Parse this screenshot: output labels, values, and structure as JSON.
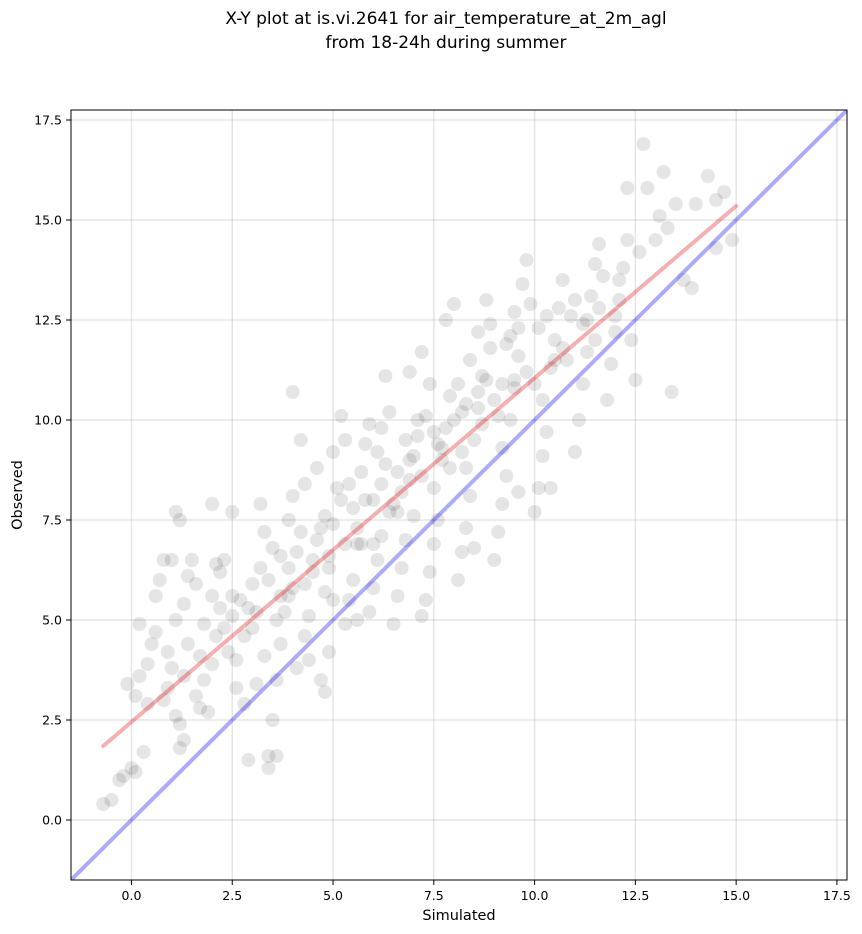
{
  "chart_data": {
    "type": "scatter",
    "title_lines": [
      "X-Y plot at is.vi.2641 for air_temperature_at_2m_agl",
      "from 18-24h during summer"
    ],
    "xlabel": "Simulated",
    "ylabel": "Observed",
    "xlim": [
      -1.5,
      17.75
    ],
    "ylim": [
      -1.5,
      17.75
    ],
    "xticks": [
      {
        "value": 0.0,
        "label": "0.0"
      },
      {
        "value": 2.5,
        "label": "2.5"
      },
      {
        "value": 5.0,
        "label": "5.0"
      },
      {
        "value": 7.5,
        "label": "7.5"
      },
      {
        "value": 10.0,
        "label": "10.0"
      },
      {
        "value": 12.5,
        "label": "12.5"
      },
      {
        "value": 15.0,
        "label": "15.0"
      },
      {
        "value": 17.5,
        "label": "17.5"
      }
    ],
    "yticks": [
      {
        "value": 0.0,
        "label": "0.0"
      },
      {
        "value": 2.5,
        "label": "2.5"
      },
      {
        "value": 5.0,
        "label": "5.0"
      },
      {
        "value": 7.5,
        "label": "7.5"
      },
      {
        "value": 10.0,
        "label": "10.0"
      },
      {
        "value": 12.5,
        "label": "12.5"
      },
      {
        "value": 15.0,
        "label": "15.0"
      },
      {
        "value": 17.5,
        "label": "17.5"
      }
    ],
    "grid": true,
    "point_color": "#000000",
    "point_opacity": 0.1,
    "points": [
      [
        -0.7,
        0.4
      ],
      [
        -0.5,
        0.5
      ],
      [
        -0.3,
        1.0
      ],
      [
        -0.2,
        1.1
      ],
      [
        0.0,
        1.3
      ],
      [
        0.1,
        1.2
      ],
      [
        0.3,
        1.7
      ],
      [
        0.1,
        3.1
      ],
      [
        0.2,
        3.6
      ],
      [
        0.4,
        3.9
      ],
      [
        0.5,
        4.4
      ],
      [
        0.2,
        4.9
      ],
      [
        0.6,
        5.6
      ],
      [
        0.7,
        6.0
      ],
      [
        0.8,
        6.5
      ],
      [
        1.0,
        6.5
      ],
      [
        1.1,
        7.7
      ],
      [
        1.2,
        7.5
      ],
      [
        1.1,
        2.6
      ],
      [
        1.2,
        2.4
      ],
      [
        1.2,
        1.8
      ],
      [
        1.3,
        2.0
      ],
      [
        1.0,
        3.8
      ],
      [
        0.9,
        4.2
      ],
      [
        1.1,
        5.0
      ],
      [
        1.3,
        5.4
      ],
      [
        1.4,
        6.1
      ],
      [
        1.5,
        6.5
      ],
      [
        1.6,
        3.1
      ],
      [
        1.8,
        3.5
      ],
      [
        1.7,
        2.8
      ],
      [
        1.9,
        2.7
      ],
      [
        2.0,
        3.9
      ],
      [
        2.1,
        4.6
      ],
      [
        2.0,
        5.6
      ],
      [
        2.2,
        6.2
      ],
      [
        2.3,
        6.5
      ],
      [
        2.0,
        7.9
      ],
      [
        2.5,
        7.7
      ],
      [
        2.4,
        4.2
      ],
      [
        2.6,
        4.0
      ],
      [
        2.5,
        5.1
      ],
      [
        2.7,
        5.5
      ],
      [
        2.8,
        2.9
      ],
      [
        2.9,
        1.5
      ],
      [
        3.1,
        3.4
      ],
      [
        3.0,
        4.8
      ],
      [
        3.2,
        6.3
      ],
      [
        3.3,
        7.2
      ],
      [
        3.2,
        7.9
      ],
      [
        3.4,
        1.3
      ],
      [
        3.4,
        1.6
      ],
      [
        3.6,
        1.6
      ],
      [
        3.5,
        2.5
      ],
      [
        3.6,
        3.5
      ],
      [
        3.7,
        4.4
      ],
      [
        3.8,
        5.2
      ],
      [
        3.9,
        5.6
      ],
      [
        3.7,
        6.6
      ],
      [
        3.9,
        7.5
      ],
      [
        4.0,
        8.1
      ],
      [
        4.0,
        10.7
      ],
      [
        4.2,
        9.5
      ],
      [
        4.3,
        8.4
      ],
      [
        4.1,
        3.8
      ],
      [
        4.3,
        4.6
      ],
      [
        4.4,
        5.1
      ],
      [
        4.5,
        6.2
      ],
      [
        4.6,
        7.0
      ],
      [
        4.7,
        3.5
      ],
      [
        4.8,
        3.2
      ],
      [
        4.9,
        4.2
      ],
      [
        4.8,
        5.7
      ],
      [
        4.9,
        6.6
      ],
      [
        5.0,
        7.4
      ],
      [
        5.1,
        8.3
      ],
      [
        5.0,
        9.2
      ],
      [
        5.2,
        10.1
      ],
      [
        5.3,
        4.9
      ],
      [
        5.4,
        5.5
      ],
      [
        5.5,
        6.0
      ],
      [
        5.6,
        6.9
      ],
      [
        5.5,
        7.8
      ],
      [
        5.7,
        8.7
      ],
      [
        5.8,
        9.4
      ],
      [
        5.9,
        5.2
      ],
      [
        6.0,
        5.8
      ],
      [
        6.1,
        6.5
      ],
      [
        6.2,
        7.1
      ],
      [
        6.0,
        8.0
      ],
      [
        6.3,
        8.9
      ],
      [
        6.2,
        9.8
      ],
      [
        6.4,
        10.2
      ],
      [
        6.5,
        4.9
      ],
      [
        6.6,
        5.6
      ],
      [
        6.7,
        6.3
      ],
      [
        6.8,
        7.0
      ],
      [
        6.6,
        7.7
      ],
      [
        6.9,
        8.5
      ],
      [
        7.0,
        9.1
      ],
      [
        7.1,
        10.0
      ],
      [
        6.9,
        11.2
      ],
      [
        7.2,
        11.7
      ],
      [
        7.3,
        5.5
      ],
      [
        7.4,
        6.2
      ],
      [
        7.5,
        6.9
      ],
      [
        7.6,
        7.5
      ],
      [
        7.5,
        8.3
      ],
      [
        7.7,
        9.0
      ],
      [
        7.8,
        9.8
      ],
      [
        7.9,
        10.6
      ],
      [
        7.8,
        12.5
      ],
      [
        8.0,
        12.9
      ],
      [
        8.1,
        6.0
      ],
      [
        8.2,
        6.7
      ],
      [
        8.3,
        7.3
      ],
      [
        8.4,
        8.1
      ],
      [
        8.3,
        8.8
      ],
      [
        8.5,
        9.5
      ],
      [
        8.6,
        10.3
      ],
      [
        8.7,
        11.1
      ],
      [
        8.6,
        12.2
      ],
      [
        8.8,
        13.0
      ],
      [
        9.0,
        6.5
      ],
      [
        9.1,
        7.2
      ],
      [
        9.2,
        7.9
      ],
      [
        9.3,
        8.6
      ],
      [
        9.2,
        9.3
      ],
      [
        9.4,
        10.0
      ],
      [
        9.5,
        10.8
      ],
      [
        9.6,
        11.6
      ],
      [
        9.5,
        12.7
      ],
      [
        9.7,
        13.4
      ],
      [
        9.8,
        14.0
      ],
      [
        10.0,
        7.7
      ],
      [
        10.1,
        8.3
      ],
      [
        10.2,
        9.1
      ],
      [
        10.3,
        9.7
      ],
      [
        10.2,
        10.5
      ],
      [
        10.4,
        11.3
      ],
      [
        10.5,
        12.0
      ],
      [
        10.6,
        12.8
      ],
      [
        10.7,
        13.5
      ],
      [
        11.0,
        9.2
      ],
      [
        11.1,
        10.0
      ],
      [
        11.2,
        10.9
      ],
      [
        11.3,
        11.7
      ],
      [
        11.2,
        12.4
      ],
      [
        11.4,
        13.1
      ],
      [
        11.5,
        13.9
      ],
      [
        11.6,
        14.4
      ],
      [
        11.8,
        10.5
      ],
      [
        11.9,
        11.4
      ],
      [
        12.0,
        12.2
      ],
      [
        12.1,
        13.0
      ],
      [
        12.2,
        13.8
      ],
      [
        12.3,
        14.5
      ],
      [
        12.4,
        12.0
      ],
      [
        12.5,
        11.0
      ],
      [
        12.6,
        14.2
      ],
      [
        12.8,
        15.8
      ],
      [
        13.0,
        14.5
      ],
      [
        13.1,
        15.1
      ],
      [
        13.2,
        16.2
      ],
      [
        13.3,
        14.8
      ],
      [
        13.4,
        10.7
      ],
      [
        13.5,
        15.4
      ],
      [
        13.7,
        13.5
      ],
      [
        13.9,
        13.3
      ],
      [
        14.0,
        15.4
      ],
      [
        14.3,
        16.1
      ],
      [
        14.5,
        15.5
      ],
      [
        14.7,
        15.7
      ],
      [
        14.5,
        14.3
      ],
      [
        14.9,
        14.5
      ],
      [
        12.7,
        16.9
      ],
      [
        12.3,
        15.8
      ],
      [
        2.1,
        6.4
      ],
      [
        1.6,
        5.9
      ],
      [
        3.0,
        5.9
      ],
      [
        4.4,
        4.0
      ],
      [
        5.6,
        5.0
      ],
      [
        7.2,
        5.1
      ],
      [
        8.5,
        6.8
      ],
      [
        9.6,
        8.2
      ],
      [
        10.4,
        8.3
      ],
      [
        3.3,
        4.1
      ],
      [
        6.3,
        11.1
      ],
      [
        5.3,
        9.5
      ],
      [
        4.6,
        8.8
      ],
      [
        7.4,
        10.9
      ],
      [
        8.9,
        12.4
      ],
      [
        9.9,
        12.9
      ],
      [
        10.8,
        11.5
      ],
      [
        11.6,
        12.8
      ],
      [
        12.1,
        13.5
      ],
      [
        2.8,
        4.6
      ],
      [
        6.7,
        8.2
      ],
      [
        7.9,
        8.8
      ],
      [
        8.7,
        9.9
      ],
      [
        9.3,
        11.9
      ],
      [
        5.9,
        9.9
      ],
      [
        4.1,
        6.7
      ],
      [
        3.6,
        5.0
      ],
      [
        1.4,
        4.4
      ],
      [
        0.9,
        3.3
      ],
      [
        2.6,
        3.3
      ],
      [
        7.0,
        7.6
      ],
      [
        8.2,
        10.2
      ],
      [
        9.0,
        10.5
      ],
      [
        6.0,
        6.9
      ],
      [
        5.0,
        5.5
      ],
      [
        4.3,
        5.9
      ],
      [
        5.6,
        7.3
      ],
      [
        6.5,
        7.9
      ],
      [
        7.6,
        9.4
      ],
      [
        8.4,
        11.5
      ],
      [
        9.8,
        11.2
      ],
      [
        10.9,
        12.6
      ],
      [
        3.9,
        6.3
      ],
      [
        5.2,
        8.0
      ],
      [
        6.2,
        8.4
      ],
      [
        7.1,
        9.6
      ],
      [
        8.0,
        10.0
      ],
      [
        8.8,
        11.0
      ],
      [
        9.6,
        12.3
      ],
      [
        10.3,
        12.6
      ],
      [
        11.0,
        13.0
      ],
      [
        11.7,
        13.6
      ],
      [
        2.5,
        5.6
      ],
      [
        3.4,
        6.0
      ],
      [
        4.2,
        7.2
      ],
      [
        4.8,
        7.6
      ],
      [
        5.4,
        8.4
      ],
      [
        6.1,
        9.2
      ],
      [
        6.8,
        9.5
      ],
      [
        7.3,
        10.1
      ],
      [
        8.1,
        10.9
      ],
      [
        8.9,
        11.8
      ],
      [
        9.4,
        12.1
      ],
      [
        10.1,
        12.3
      ],
      [
        1.8,
        4.9
      ],
      [
        2.9,
        5.3
      ],
      [
        3.7,
        5.6
      ],
      [
        4.5,
        6.5
      ],
      [
        5.3,
        6.9
      ],
      [
        6.4,
        7.7
      ],
      [
        7.2,
        8.6
      ],
      [
        8.2,
        9.2
      ],
      [
        9.1,
        10.1
      ],
      [
        10.0,
        10.9
      ],
      [
        10.7,
        11.8
      ],
      [
        11.3,
        12.5
      ],
      [
        0.6,
        4.7
      ],
      [
        1.7,
        4.1
      ],
      [
        2.3,
        4.8
      ],
      [
        3.1,
        5.2
      ],
      [
        4.0,
        5.8
      ],
      [
        4.9,
        6.3
      ],
      [
        5.7,
        6.9
      ],
      [
        6.6,
        8.7
      ],
      [
        7.7,
        9.3
      ],
      [
        8.6,
        10.7
      ],
      [
        9.5,
        11.0
      ],
      [
        10.5,
        11.5
      ],
      [
        11.5,
        12.0
      ],
      [
        12.0,
        12.6
      ],
      [
        6.9,
        9.0
      ],
      [
        7.5,
        9.7
      ],
      [
        8.3,
        10.4
      ],
      [
        9.2,
        10.9
      ],
      [
        5.8,
        8.0
      ],
      [
        4.7,
        7.3
      ],
      [
        3.5,
        6.8
      ],
      [
        2.2,
        5.3
      ],
      [
        1.3,
        3.6
      ],
      [
        0.4,
        2.9
      ],
      [
        -0.1,
        3.4
      ],
      [
        0.8,
        3.0
      ]
    ],
    "series": [
      {
        "line": "identity",
        "color": "#0000ee",
        "opacity": 0.33,
        "x": [
          -1.5,
          17.75
        ],
        "y": [
          -1.5,
          17.75
        ]
      },
      {
        "line": "fit",
        "color": "#e41a1c",
        "opacity": 0.35,
        "x": [
          -0.7,
          15.0
        ],
        "y": [
          1.85,
          15.35
        ]
      }
    ]
  }
}
